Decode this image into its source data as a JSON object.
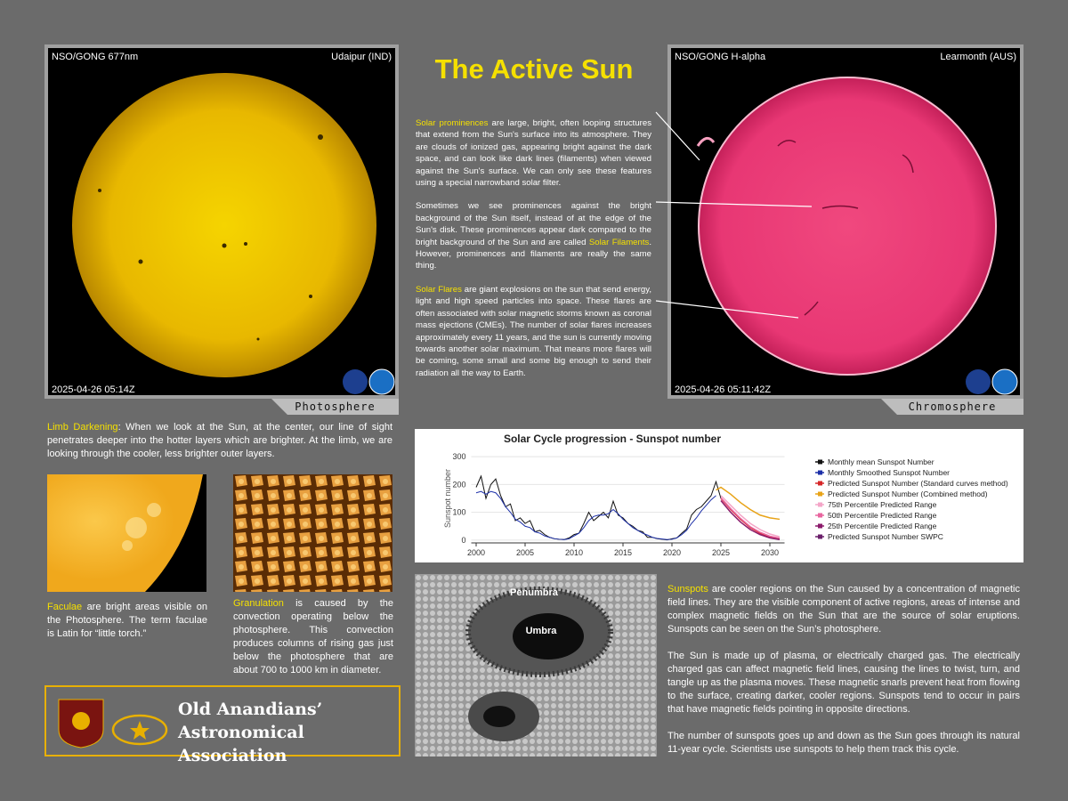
{
  "title": "The Active Sun",
  "photosphere": {
    "source": "NSO/GONG 677nm",
    "location": "Udaipur (IND)",
    "timestamp": "2025-04-26 05:14Z",
    "label": "Photosphere"
  },
  "chromosphere": {
    "source": "NSO/GONG H-alpha",
    "location": "Learmonth (AUS)",
    "timestamp": "2025-04-26 05:11:42Z",
    "label": "Chromosphere"
  },
  "intro": [
    [
      {
        "text": "Solar prominences",
        "highlight": true
      },
      {
        "text": " are large, bright, often looping structures that extend from the Sun's surface into its atmosphere. They are clouds of ionized gas, appearing bright against the dark space, and can look like dark lines (filaments) when viewed against the Sun's surface. We can only see these features using a special narrowband solar filter.",
        "highlight": false
      }
    ],
    [
      {
        "text": "Sometimes we see prominences against the bright background of the Sun itself, instead of at the edge of the Sun's disk. These prominences appear dark compared to the bright background of the Sun and are called ",
        "highlight": false
      },
      {
        "text": "Solar Filaments",
        "highlight": true
      },
      {
        "text": ".  However, prominences and filaments are really the same thing.",
        "highlight": false
      }
    ],
    [
      {
        "text": "Solar Flares",
        "highlight": true
      },
      {
        "text": " are giant explosions on the sun that send energy, light and high speed particles into space. These flares are often associated with solar magnetic storms known as coronal mass ejections (CMEs). The number of solar flares increases approximately every 11 years, and the sun is currently moving towards another solar maximum. That means more flares will be coming, some small and some big enough to send their radiation all the way to Earth.",
        "highlight": false
      }
    ]
  ],
  "limb_darkening": [
    {
      "text": "Limb Darkening",
      "highlight": true
    },
    {
      "text": ": When we look at the Sun, at the center, our line of sight penetrates deeper into the hotter layers which are brighter. At the limb, we are looking through the cooler, less brighter outer layers.",
      "highlight": false
    }
  ],
  "faculae": [
    {
      "text": "Faculae",
      "highlight": true
    },
    {
      "text": " are bright areas visible on the Photosphere. The term faculae is Latin for “little torch.”",
      "highlight": false
    }
  ],
  "granulation": [
    {
      "text": "Granulation",
      "highlight": true
    },
    {
      "text": " is caused by the convection operating below the photosphere. This convection produces columns of rising gas just below the photosphere that are about 700 to 1000 km in diameter.",
      "highlight": false
    }
  ],
  "logo": {
    "line1": "Old Anandians’",
    "line2": "Astronomical Association"
  },
  "sunspot_image": {
    "penumbra": "Penumbra",
    "umbra": "Umbra"
  },
  "sunspots": [
    [
      {
        "text": "Sunspots",
        "highlight": true
      },
      {
        "text": " are cooler regions on the Sun caused by a concentration of magnetic field lines. They are the visible component of active regions, areas of intense and complex magnetic fields on the Sun that are the source of solar eruptions. Sunspots can be seen on the Sun’s photosphere.",
        "highlight": false
      }
    ],
    [
      {
        "text": "The Sun is made up of plasma, or electrically charged gas. The electrically charged gas can affect magnetic field lines, causing the lines to twist, turn, and tangle up as the plasma moves. These magnetic snarls prevent heat from flowing to the surface, creating darker, cooler regions. Sunspots tend to occur in pairs that have magnetic fields pointing in opposite directions.",
        "highlight": false
      }
    ],
    [
      {
        "text": "The number of sunspots goes up and down as the Sun goes through its natural 11-year cycle. Scientists use sunspots to help them track this cycle.",
        "highlight": false
      }
    ]
  ],
  "chart_data": {
    "type": "line",
    "title": "Solar Cycle progression - Sunspot number",
    "y_label": "Sunspot number",
    "xlim": [
      1999.5,
      2031.5
    ],
    "xticks": [
      2000,
      2005,
      2010,
      2015,
      2020,
      2025,
      2030
    ],
    "ylim": [
      -10,
      310
    ],
    "yticks": [
      0,
      100,
      200,
      300
    ],
    "grid": true,
    "legend": "right",
    "series": [
      {
        "name": "Monthly mean Sunspot Number",
        "color": "#111111",
        "x": [
          2000,
          2000.5,
          2001,
          2001.5,
          2002,
          2002.5,
          2003,
          2003.5,
          2004,
          2004.5,
          2005,
          2005.5,
          2006,
          2006.5,
          2007,
          2007.5,
          2008,
          2008.5,
          2009,
          2009.5,
          2010,
          2010.5,
          2011,
          2011.5,
          2012,
          2012.5,
          2013,
          2013.5,
          2014,
          2014.5,
          2015,
          2015.5,
          2016,
          2016.5,
          2017,
          2017.5,
          2018,
          2018.5,
          2019,
          2019.5,
          2020,
          2020.5,
          2021,
          2021.5,
          2022,
          2022.5,
          2023,
          2023.5,
          2024,
          2024.5,
          2025
        ],
        "values": [
          190,
          230,
          150,
          200,
          220,
          160,
          120,
          130,
          70,
          80,
          60,
          70,
          30,
          35,
          20,
          10,
          5,
          3,
          2,
          8,
          20,
          25,
          60,
          100,
          70,
          85,
          100,
          80,
          140,
          90,
          80,
          60,
          50,
          35,
          30,
          10,
          10,
          5,
          3,
          1,
          5,
          8,
          25,
          40,
          90,
          110,
          120,
          140,
          160,
          210,
          150
        ]
      },
      {
        "name": "Monthly Smoothed Sunspot Number",
        "color": "#1c2fa8",
        "x": [
          2000,
          2000.5,
          2001,
          2001.5,
          2002,
          2002.5,
          2003,
          2003.5,
          2004,
          2004.5,
          2005,
          2005.5,
          2006,
          2006.5,
          2007,
          2007.5,
          2008,
          2008.5,
          2009,
          2009.5,
          2010,
          2010.5,
          2011,
          2011.5,
          2012,
          2012.5,
          2013,
          2013.5,
          2014,
          2014.5,
          2015,
          2015.5,
          2016,
          2016.5,
          2017,
          2017.5,
          2018,
          2018.5,
          2019,
          2019.5,
          2020,
          2020.5,
          2021,
          2021.5,
          2022,
          2022.5,
          2023,
          2023.5,
          2024,
          2024.5
        ],
        "values": [
          170,
          175,
          165,
          175,
          170,
          150,
          120,
          100,
          75,
          65,
          50,
          45,
          30,
          25,
          15,
          10,
          5,
          3,
          2,
          5,
          15,
          25,
          45,
          70,
          85,
          90,
          90,
          95,
          110,
          95,
          75,
          60,
          45,
          35,
          25,
          18,
          10,
          6,
          4,
          2,
          3,
          8,
          20,
          35,
          60,
          80,
          105,
          125,
          145,
          160
        ]
      },
      {
        "name": "Predicted Sunspot Number (Standard curves method)",
        "color": "#d62728",
        "x": [
          2025,
          2026,
          2027,
          2028,
          2029,
          2030,
          2031
        ],
        "values": [
          150,
          110,
          75,
          45,
          25,
          12,
          5
        ]
      },
      {
        "name": "Predicted Sunspot Number (Combined method)",
        "color": "#e8a317",
        "x": [
          2024.5,
          2025,
          2026,
          2027,
          2028,
          2029,
          2030,
          2031
        ],
        "values": [
          180,
          190,
          165,
          135,
          110,
          90,
          80,
          75
        ]
      },
      {
        "name": "75th Percentile Predicted Range",
        "color": "#f4a6c8",
        "x": [
          2025,
          2026,
          2027,
          2028,
          2029,
          2030,
          2031
        ],
        "values": [
          160,
          125,
          90,
          60,
          38,
          22,
          12
        ]
      },
      {
        "name": "50th Percentile Predicted Range",
        "color": "#e8659f",
        "x": [
          2025,
          2026,
          2027,
          2028,
          2029,
          2030,
          2031
        ],
        "values": [
          152,
          113,
          78,
          48,
          28,
          14,
          7
        ]
      },
      {
        "name": "25th Percentile Predicted Range",
        "color": "#8b1a6b",
        "x": [
          2025,
          2026,
          2027,
          2028,
          2029,
          2030,
          2031
        ],
        "values": [
          142,
          100,
          65,
          38,
          20,
          8,
          2
        ]
      },
      {
        "name": "Predicted Sunspot Number SWPC",
        "color": "#6a1f6a",
        "x": [],
        "values": []
      }
    ]
  }
}
